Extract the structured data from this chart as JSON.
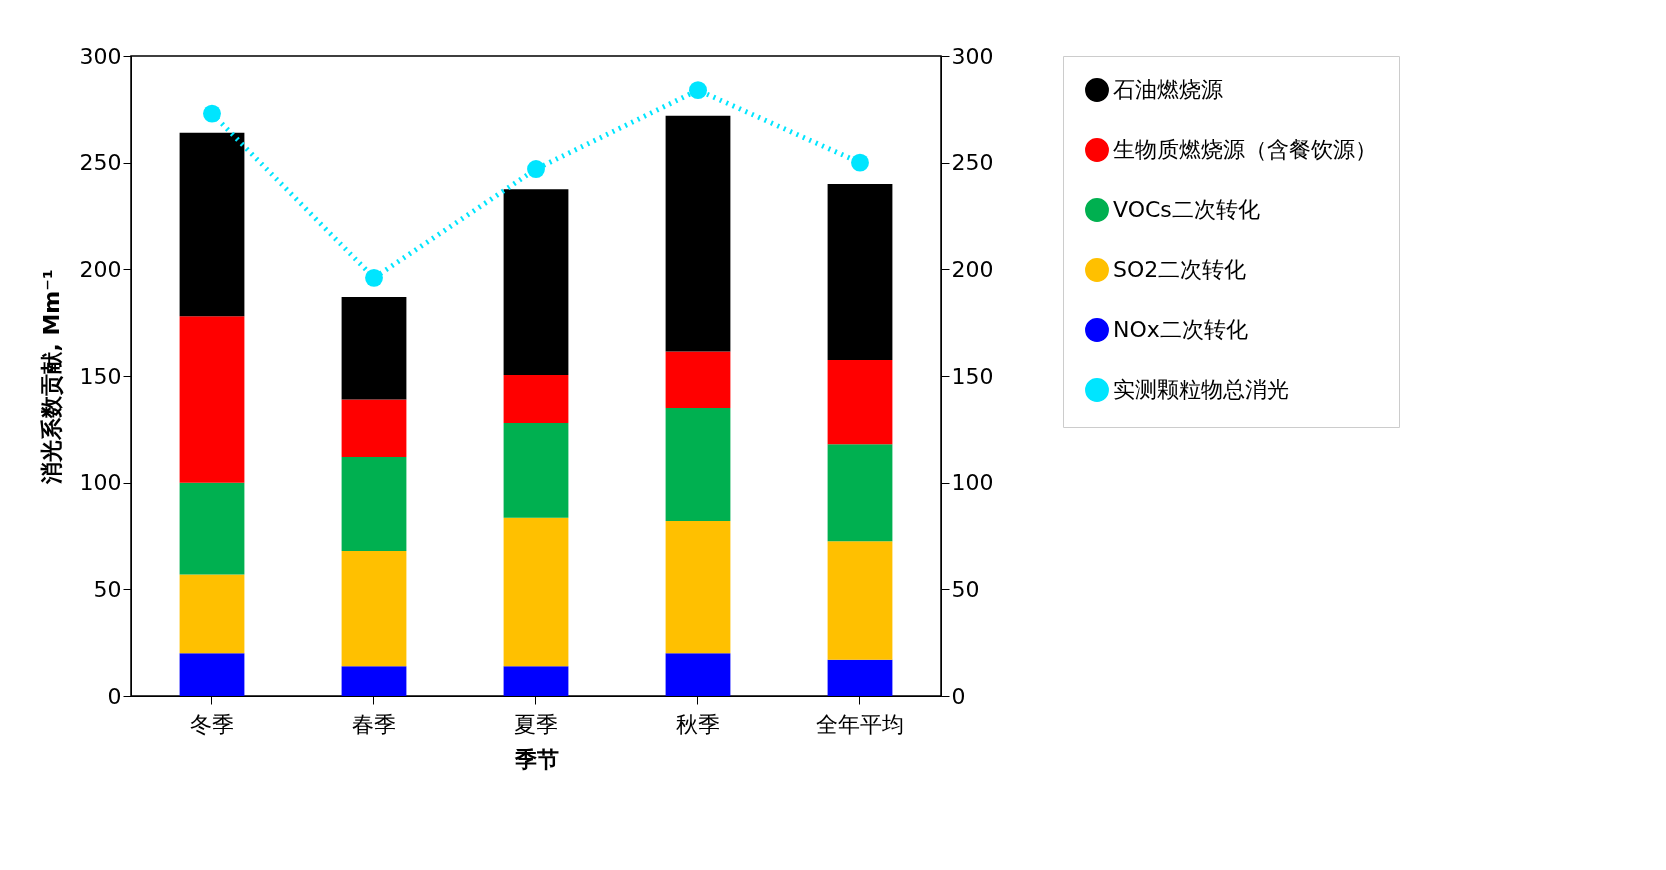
{
  "chart_data": {
    "type": "bar",
    "stacked": true,
    "xlabel": "季节",
    "ylabel": "消光系数贡献, Mm⁻¹",
    "categories": [
      "冬季",
      "春季",
      "夏季",
      "秋季",
      "全年平均"
    ],
    "series": [
      {
        "name": "NOx二次转化",
        "color": "#0000ff",
        "values": [
          20,
          14,
          14,
          20,
          17
        ]
      },
      {
        "name": "SO2二次转化",
        "color": "#ffc000",
        "values": [
          37,
          54,
          69.5,
          62,
          55.5
        ]
      },
      {
        "name": "VOCs二次转化",
        "color": "#00b050",
        "values": [
          43,
          44,
          44.5,
          53,
          45.5
        ]
      },
      {
        "name": "生物质燃烧源（含餐饮源）",
        "color": "#ff0000",
        "values": [
          78,
          27,
          22.5,
          26.5,
          39.5
        ]
      },
      {
        "name": "石油燃烧源",
        "color": "#000000",
        "values": [
          86,
          48,
          87,
          110.5,
          82.5
        ]
      },
      {
        "name": "实测颗粒物总消光",
        "type": "line",
        "axis": "y2",
        "color": "#00e5ff",
        "marker": "circle",
        "line_style": "dotted",
        "values": [
          273,
          196,
          247,
          284,
          250
        ]
      }
    ],
    "ylim": [
      0,
      300
    ],
    "yticks": [
      0,
      50,
      100,
      150,
      200,
      250,
      300
    ],
    "y2lim": [
      0,
      300
    ],
    "y2ticks": [
      0,
      50,
      100,
      150,
      200,
      250,
      300
    ],
    "legend": "right"
  }
}
